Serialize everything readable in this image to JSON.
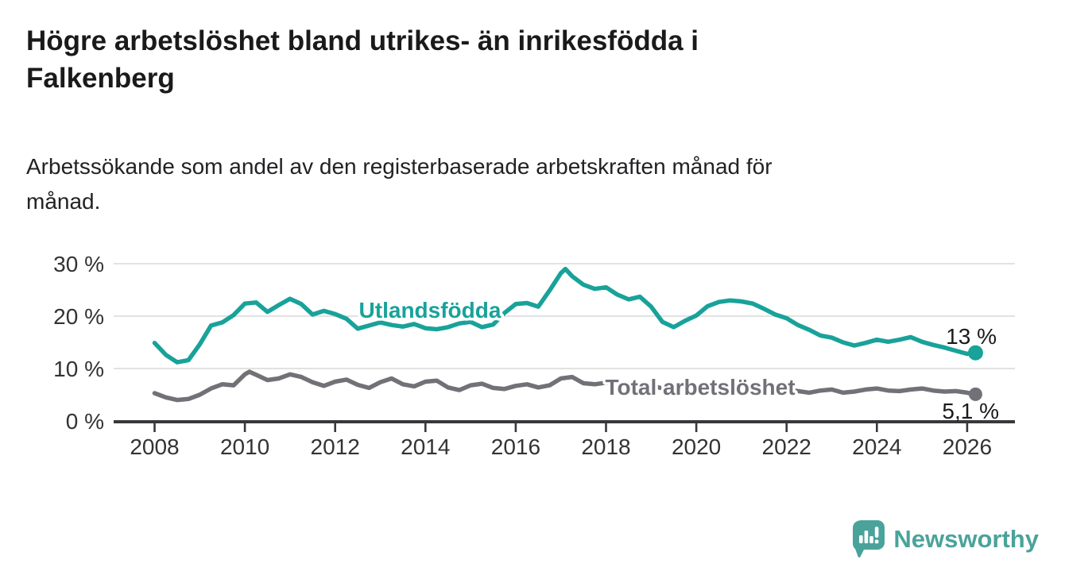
{
  "header": {
    "title": "Högre arbetslöshet bland utrikes- än inrikesfödda i Falkenberg",
    "title_lines": [
      "Högre arbetslöshet bland utrikes- än inrikesfödda i",
      "Falkenberg"
    ],
    "subtitle": "Arbetssökande som andel av den registerbaserade arbetskraften månad för månad.",
    "subtitle_lines": [
      "Arbetssökande som andel av den registerbaserade arbetskraften månad för",
      "månad."
    ]
  },
  "footer": {
    "brand": "Newsworthy",
    "brand_color": "#4aa39a",
    "logo_icon": "speech-bubble-bar-chart-icon"
  },
  "chart_data": {
    "type": "line",
    "title": "Högre arbetslöshet bland utrikes- än inrikesfödda i Falkenberg",
    "subtitle": "Arbetssökande som andel av den registerbaserade arbetskraften månad för månad.",
    "xlabel": "",
    "ylabel": "",
    "grid": "horizontal",
    "xlim": [
      2007.2,
      2027.1
    ],
    "ylim": [
      0,
      32
    ],
    "axis": {
      "y_ticks": [
        {
          "value": 0,
          "label": "0 %"
        },
        {
          "value": 10,
          "label": "10 %"
        },
        {
          "value": 20,
          "label": "20 %"
        },
        {
          "value": 30,
          "label": "30 %"
        }
      ],
      "x_ticks": [
        {
          "value": 2008,
          "label": "2008"
        },
        {
          "value": 2010,
          "label": "2010"
        },
        {
          "value": 2012,
          "label": "2012"
        },
        {
          "value": 2014,
          "label": "2014"
        },
        {
          "value": 2016,
          "label": "2016"
        },
        {
          "value": 2018,
          "label": "2018"
        },
        {
          "value": 2020,
          "label": "2020"
        },
        {
          "value": 2022,
          "label": "2022"
        },
        {
          "value": 2024,
          "label": "2024"
        },
        {
          "value": 2026,
          "label": "2026"
        }
      ],
      "grid_color": "#d8d8d8",
      "axis_color": "#38383c",
      "tick_text_color": "#333333"
    },
    "series": [
      {
        "name": "Utlandsfödda",
        "color": "#18a29a",
        "end_label": "13 %",
        "end_value": 13,
        "points": [
          [
            2008.0,
            14.9
          ],
          [
            2008.25,
            12.6
          ],
          [
            2008.5,
            11.2
          ],
          [
            2008.75,
            11.6
          ],
          [
            2009.0,
            14.6
          ],
          [
            2009.25,
            18.2
          ],
          [
            2009.5,
            18.8
          ],
          [
            2009.75,
            20.2
          ],
          [
            2010.0,
            22.4
          ],
          [
            2010.25,
            22.6
          ],
          [
            2010.5,
            20.8
          ],
          [
            2010.75,
            22.1
          ],
          [
            2011.0,
            23.3
          ],
          [
            2011.25,
            22.3
          ],
          [
            2011.5,
            20.3
          ],
          [
            2011.75,
            21.0
          ],
          [
            2012.0,
            20.4
          ],
          [
            2012.25,
            19.5
          ],
          [
            2012.5,
            17.6
          ],
          [
            2012.75,
            18.2
          ],
          [
            2013.0,
            18.8
          ],
          [
            2013.25,
            18.3
          ],
          [
            2013.5,
            18.0
          ],
          [
            2013.75,
            18.5
          ],
          [
            2014.0,
            17.7
          ],
          [
            2014.25,
            17.5
          ],
          [
            2014.5,
            17.9
          ],
          [
            2014.75,
            18.6
          ],
          [
            2015.0,
            18.9
          ],
          [
            2015.25,
            17.9
          ],
          [
            2015.5,
            18.4
          ],
          [
            2015.75,
            20.6
          ],
          [
            2016.0,
            22.3
          ],
          [
            2016.25,
            22.5
          ],
          [
            2016.5,
            21.8
          ],
          [
            2016.75,
            24.9
          ],
          [
            2017.0,
            28.2
          ],
          [
            2017.1,
            29.0
          ],
          [
            2017.25,
            27.6
          ],
          [
            2017.5,
            26.0
          ],
          [
            2017.75,
            25.2
          ],
          [
            2018.0,
            25.5
          ],
          [
            2018.25,
            24.1
          ],
          [
            2018.5,
            23.2
          ],
          [
            2018.75,
            23.7
          ],
          [
            2019.0,
            21.8
          ],
          [
            2019.25,
            18.9
          ],
          [
            2019.5,
            17.9
          ],
          [
            2019.75,
            19.1
          ],
          [
            2020.0,
            20.1
          ],
          [
            2020.25,
            21.9
          ],
          [
            2020.5,
            22.7
          ],
          [
            2020.75,
            23.0
          ],
          [
            2021.0,
            22.8
          ],
          [
            2021.25,
            22.4
          ],
          [
            2021.5,
            21.4
          ],
          [
            2021.75,
            20.3
          ],
          [
            2022.0,
            19.6
          ],
          [
            2022.25,
            18.3
          ],
          [
            2022.5,
            17.4
          ],
          [
            2022.75,
            16.3
          ],
          [
            2023.0,
            15.9
          ],
          [
            2023.25,
            15.0
          ],
          [
            2023.5,
            14.4
          ],
          [
            2023.75,
            14.9
          ],
          [
            2024.0,
            15.5
          ],
          [
            2024.25,
            15.1
          ],
          [
            2024.5,
            15.5
          ],
          [
            2024.75,
            16.0
          ],
          [
            2025.0,
            15.1
          ],
          [
            2025.25,
            14.5
          ],
          [
            2025.5,
            14.0
          ],
          [
            2025.75,
            13.4
          ],
          [
            2026.0,
            12.8
          ],
          [
            2026.15,
            13.0
          ]
        ]
      },
      {
        "name": "Total arbetslöshet",
        "color": "#717178",
        "end_label": "5,1 %",
        "end_value": 5.1,
        "points": [
          [
            2008.0,
            5.3
          ],
          [
            2008.25,
            4.5
          ],
          [
            2008.5,
            4.0
          ],
          [
            2008.75,
            4.2
          ],
          [
            2009.0,
            5.0
          ],
          [
            2009.25,
            6.2
          ],
          [
            2009.5,
            7.0
          ],
          [
            2009.75,
            6.8
          ],
          [
            2010.0,
            8.9
          ],
          [
            2010.1,
            9.4
          ],
          [
            2010.25,
            8.8
          ],
          [
            2010.5,
            7.8
          ],
          [
            2010.75,
            8.1
          ],
          [
            2011.0,
            8.9
          ],
          [
            2011.25,
            8.4
          ],
          [
            2011.5,
            7.4
          ],
          [
            2011.75,
            6.7
          ],
          [
            2012.0,
            7.5
          ],
          [
            2012.25,
            7.9
          ],
          [
            2012.5,
            6.9
          ],
          [
            2012.75,
            6.3
          ],
          [
            2013.0,
            7.4
          ],
          [
            2013.25,
            8.1
          ],
          [
            2013.5,
            7.0
          ],
          [
            2013.75,
            6.6
          ],
          [
            2014.0,
            7.5
          ],
          [
            2014.25,
            7.7
          ],
          [
            2014.5,
            6.4
          ],
          [
            2014.75,
            5.9
          ],
          [
            2015.0,
            6.8
          ],
          [
            2015.25,
            7.1
          ],
          [
            2015.5,
            6.3
          ],
          [
            2015.75,
            6.1
          ],
          [
            2016.0,
            6.7
          ],
          [
            2016.25,
            7.0
          ],
          [
            2016.5,
            6.4
          ],
          [
            2016.75,
            6.8
          ],
          [
            2017.0,
            8.1
          ],
          [
            2017.25,
            8.4
          ],
          [
            2017.5,
            7.2
          ],
          [
            2017.75,
            7.0
          ],
          [
            2018.0,
            7.3
          ],
          [
            2018.25,
            6.9
          ],
          [
            2018.5,
            6.4
          ],
          [
            2018.75,
            6.5
          ],
          [
            2019.0,
            6.8
          ],
          [
            2019.25,
            6.2
          ],
          [
            2019.5,
            5.9
          ],
          [
            2019.75,
            6.0
          ],
          [
            2020.0,
            6.3
          ],
          [
            2020.25,
            6.9
          ],
          [
            2020.5,
            7.1
          ],
          [
            2020.75,
            6.8
          ],
          [
            2021.0,
            6.9
          ],
          [
            2021.25,
            6.5
          ],
          [
            2021.5,
            6.1
          ],
          [
            2021.75,
            5.9
          ],
          [
            2022.0,
            6.0
          ],
          [
            2022.25,
            5.7
          ],
          [
            2022.5,
            5.4
          ],
          [
            2022.75,
            5.8
          ],
          [
            2023.0,
            6.0
          ],
          [
            2023.25,
            5.4
          ],
          [
            2023.5,
            5.6
          ],
          [
            2023.75,
            6.0
          ],
          [
            2024.0,
            6.2
          ],
          [
            2024.25,
            5.8
          ],
          [
            2024.5,
            5.7
          ],
          [
            2024.75,
            6.0
          ],
          [
            2025.0,
            6.2
          ],
          [
            2025.25,
            5.8
          ],
          [
            2025.5,
            5.6
          ],
          [
            2025.75,
            5.7
          ],
          [
            2026.0,
            5.4
          ],
          [
            2026.15,
            5.1
          ]
        ]
      }
    ],
    "legend_position": "inline-labels"
  }
}
